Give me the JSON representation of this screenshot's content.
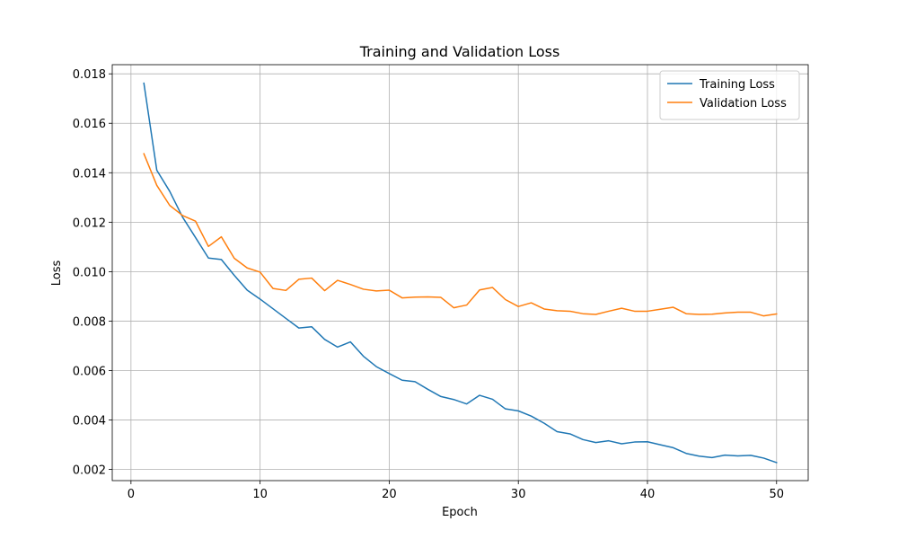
{
  "chart_data": {
    "type": "line",
    "title": "Training and Validation Loss",
    "xlabel": "Epoch",
    "ylabel": "Loss",
    "xlim": [
      -1.45,
      52.45
    ],
    "ylim": [
      0.00155,
      0.01837
    ],
    "xticks": [
      0,
      10,
      20,
      30,
      40,
      50
    ],
    "xtick_labels": [
      "0",
      "10",
      "20",
      "30",
      "40",
      "50"
    ],
    "yticks": [
      0.002,
      0.004,
      0.006,
      0.008,
      0.01,
      0.012,
      0.014,
      0.016,
      0.018
    ],
    "ytick_labels": [
      "0.002",
      "0.004",
      "0.006",
      "0.008",
      "0.010",
      "0.012",
      "0.014",
      "0.016",
      "0.018"
    ],
    "grid": true,
    "legend_position": "top-right",
    "x": [
      1,
      2,
      3,
      4,
      5,
      6,
      7,
      8,
      9,
      10,
      11,
      12,
      13,
      14,
      15,
      16,
      17,
      18,
      19,
      20,
      21,
      22,
      23,
      24,
      25,
      26,
      27,
      28,
      29,
      30,
      31,
      32,
      33,
      34,
      35,
      36,
      37,
      38,
      39,
      40,
      41,
      42,
      43,
      44,
      45,
      46,
      47,
      48,
      49,
      50
    ],
    "series": [
      {
        "name": "Training Loss",
        "color": "#1f77b4",
        "values": [
          0.01762,
          0.0141,
          0.01325,
          0.0122,
          0.01138,
          0.01055,
          0.01049,
          0.00985,
          0.00925,
          0.00889,
          0.0085,
          0.00811,
          0.00772,
          0.00777,
          0.00726,
          0.00695,
          0.00716,
          0.00658,
          0.00616,
          0.00588,
          0.00561,
          0.00555,
          0.00524,
          0.00495,
          0.00483,
          0.00465,
          0.005,
          0.00484,
          0.00445,
          0.00437,
          0.00416,
          0.00387,
          0.00353,
          0.00344,
          0.00321,
          0.00309,
          0.00316,
          0.00304,
          0.00311,
          0.00312,
          0.003,
          0.00288,
          0.00265,
          0.00254,
          0.00248,
          0.00258,
          0.00255,
          0.00257,
          0.00246,
          0.00228
        ]
      },
      {
        "name": "Validation Loss",
        "color": "#ff7f0e",
        "values": [
          0.01477,
          0.01349,
          0.01268,
          0.01227,
          0.01204,
          0.01102,
          0.01141,
          0.01054,
          0.01015,
          0.00998,
          0.00932,
          0.00924,
          0.00969,
          0.00974,
          0.00923,
          0.00965,
          0.00948,
          0.00929,
          0.00922,
          0.00925,
          0.00894,
          0.00897,
          0.00898,
          0.00896,
          0.00854,
          0.00865,
          0.00926,
          0.00936,
          0.00887,
          0.00859,
          0.00874,
          0.00849,
          0.00842,
          0.0084,
          0.0083,
          0.00827,
          0.0084,
          0.00852,
          0.0084,
          0.0084,
          0.00848,
          0.00856,
          0.0083,
          0.00827,
          0.00828,
          0.00833,
          0.00836,
          0.00836,
          0.00821,
          0.00829
        ]
      }
    ]
  }
}
